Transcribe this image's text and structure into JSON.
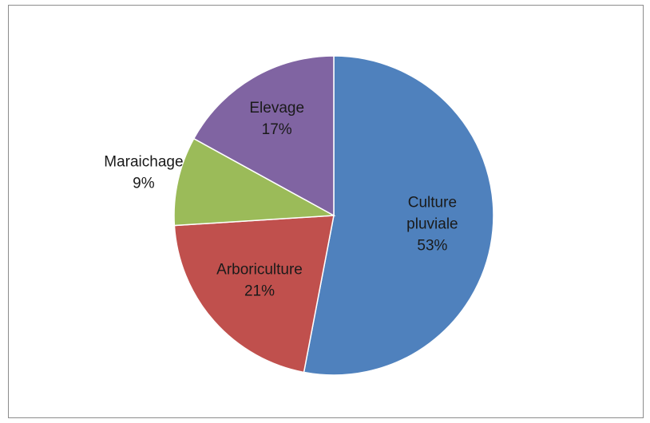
{
  "chart_data": {
    "type": "pie",
    "title": "",
    "slices": [
      {
        "label_lines": [
          "Culture",
          "pluviale"
        ],
        "value": 53,
        "value_label": "53%",
        "color": "#4f81bd"
      },
      {
        "label_lines": [
          "Arboriculture"
        ],
        "value": 21,
        "value_label": "21%",
        "color": "#c0504d"
      },
      {
        "label_lines": [
          "Maraichage"
        ],
        "value": 9,
        "value_label": "9%",
        "color": "#9bbb59"
      },
      {
        "label_lines": [
          "Elevage"
        ],
        "value": 17,
        "value_label": "17%",
        "color": "#8064a2"
      }
    ],
    "start_angle_deg": 0,
    "direction": "clockwise",
    "legend": "none",
    "data_labels": "category and percentage"
  }
}
